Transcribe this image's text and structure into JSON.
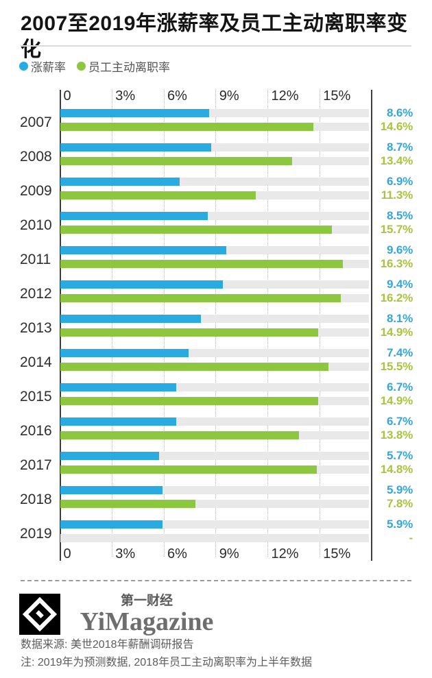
{
  "title": "2007至2019年涨薪率及员工主动离职率变化",
  "legend": [
    {
      "label": "涨薪率",
      "color": "#29abe2"
    },
    {
      "label": "员工主动离职率",
      "color": "#8dc63f"
    }
  ],
  "chart_data": {
    "type": "bar",
    "orientation": "horizontal",
    "title": "2007至2019年涨薪率及员工主动离职率变化",
    "categories": [
      "2007",
      "2008",
      "2009",
      "2010",
      "2011",
      "2012",
      "2013",
      "2014",
      "2015",
      "2016",
      "2017",
      "2018",
      "2019"
    ],
    "series": [
      {
        "name": "涨薪率",
        "color": "#29abe2",
        "label_color": "#35a6da",
        "values": [
          8.6,
          8.7,
          6.9,
          8.5,
          9.6,
          9.4,
          8.1,
          7.4,
          6.7,
          6.7,
          5.7,
          5.9,
          5.9
        ],
        "labels": [
          "8.6%",
          "8.7%",
          "6.9%",
          "8.5%",
          "9.6%",
          "9.4%",
          "8.1%",
          "7.4%",
          "6.7%",
          "6.7%",
          "5.7%",
          "5.9%",
          "5.9%"
        ]
      },
      {
        "name": "员工主动离职率",
        "color": "#8dc63f",
        "label_color": "#a9c341",
        "values": [
          14.6,
          13.4,
          11.3,
          15.7,
          16.3,
          16.2,
          14.9,
          15.5,
          14.9,
          13.8,
          14.8,
          7.8,
          null
        ],
        "labels": [
          "14.6%",
          "13.4%",
          "11.3%",
          "15.7%",
          "16.3%",
          "16.2%",
          "14.9%",
          "15.5%",
          "14.9%",
          "13.8%",
          "14.8%",
          "7.8%",
          "-"
        ]
      }
    ],
    "axis": {
      "tick_labels": [
        "0",
        "3%",
        "6%",
        "9%",
        "12%",
        "15%"
      ],
      "tick_values": [
        0,
        3,
        6,
        9,
        12,
        15
      ],
      "max": 18,
      "grid": "dotted-vertical",
      "tick_rows": "top-and-bottom"
    },
    "track_color": "#e9e9e9",
    "missing_value_display": "-"
  },
  "footer": {
    "logo_cn": "第一财经",
    "logo_en": "YiMagazine",
    "source": "数据来源: 美世2018年薪酬调研报告",
    "note": "注: 2019年为预测数据, 2018年员工主动离职率为上半年数据"
  }
}
